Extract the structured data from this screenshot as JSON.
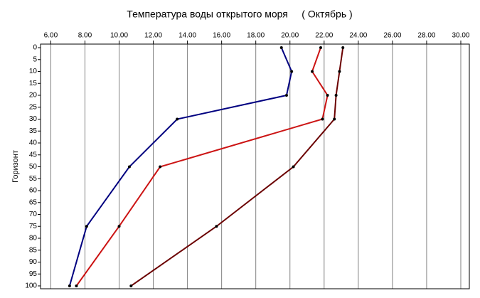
{
  "chart_data": {
    "type": "line",
    "title": "Температура воды открытого моря     ( Октябрь )",
    "y_label": "Горизонт",
    "y": [
      0,
      10,
      20,
      30,
      50,
      75,
      100
    ],
    "series": [
      {
        "color": "#000080",
        "values": [
          19.5,
          20.1,
          19.8,
          13.4,
          10.6,
          8.1,
          7.1
        ]
      },
      {
        "color": "#cc1414",
        "values": [
          21.8,
          21.3,
          22.2,
          21.9,
          12.4,
          10.0,
          7.5
        ]
      },
      {
        "color": "#6b0000",
        "values": [
          23.1,
          22.9,
          22.7,
          22.6,
          20.2,
          15.7,
          10.7
        ]
      }
    ],
    "xlim": [
      5.4,
      30.5
    ],
    "xticks": [
      {
        "value": 6,
        "label": "6.00"
      },
      {
        "value": 8,
        "label": "8.00"
      },
      {
        "value": 10,
        "label": "10.00"
      },
      {
        "value": 12,
        "label": "12.00"
      },
      {
        "value": 14,
        "label": "14.00"
      },
      {
        "value": 16,
        "label": "16.00"
      },
      {
        "value": 18,
        "label": "18.00"
      },
      {
        "value": 20,
        "label": "20.00"
      },
      {
        "value": 22,
        "label": "22.00"
      },
      {
        "value": 24,
        "label": "24.00"
      },
      {
        "value": 26,
        "label": "26.00"
      },
      {
        "value": 28,
        "label": "28.00"
      },
      {
        "value": 30,
        "label": "30.00"
      }
    ],
    "ylim": [
      -1.5,
      101.2
    ],
    "yticks": [
      0,
      5,
      10,
      15,
      20,
      25,
      30,
      35,
      40,
      45,
      50,
      55,
      60,
      65,
      70,
      75,
      80,
      85,
      90,
      95,
      100
    ],
    "y_inverted": true,
    "grid": true
  }
}
